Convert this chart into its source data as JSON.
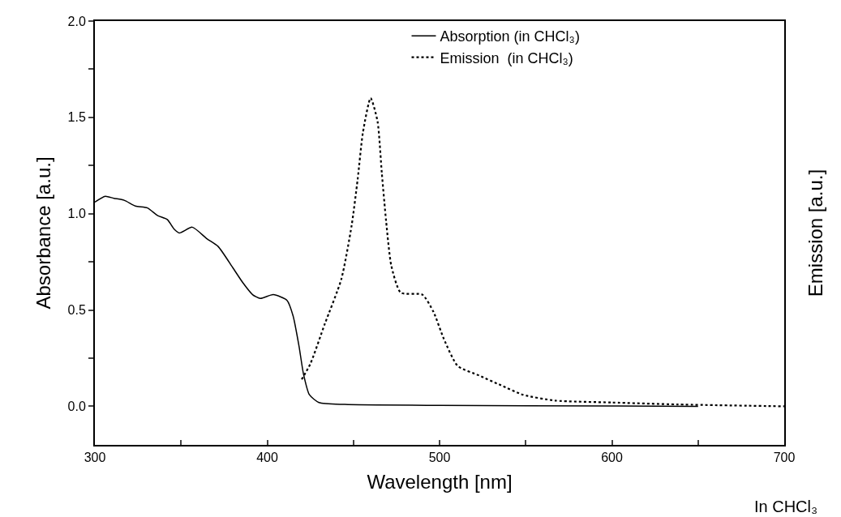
{
  "chart_data": {
    "type": "line",
    "xlabel": "Wavelength [nm]",
    "ylabel": "Absorbance [a.u.]",
    "y2label": "Emission [a.u.]",
    "xlim": [
      300,
      700
    ],
    "xticks": [
      300,
      {
        "value": 350,
        "label": null
      },
      400,
      {
        "value": 450,
        "label": null
      },
      500,
      {
        "value": 550,
        "label": null
      },
      600,
      {
        "value": 650,
        "label": null
      },
      700
    ],
    "ylim": [
      -0.2,
      2.0
    ],
    "yticks": [
      {
        "value": 0,
        "label": "0.0"
      },
      {
        "value": 0.25,
        "label": null
      },
      0.5,
      {
        "value": 0.75,
        "label": null
      },
      {
        "value": 1,
        "label": "1.0"
      },
      {
        "value": 1.25,
        "label": null
      },
      1.5,
      {
        "value": 1.75,
        "label": null
      },
      {
        "value": 2,
        "label": "2.0"
      }
    ],
    "grid": false,
    "legend": "top right",
    "marker": "none",
    "annotations": [
      "In CHCl₃"
    ],
    "series": [
      {
        "name": "Absorption (in CHCl₃)",
        "color": "#000000",
        "line_style": "solid",
        "x": [
          300,
          306,
          311,
          317,
          323.5,
          330.5,
          336.5,
          342,
          346,
          349,
          356.5,
          365,
          371.5,
          380,
          386,
          391.5,
          396,
          403.5,
          411.5,
          415,
          418.5,
          421,
          424.5,
          430,
          445,
          500,
          600,
          650
        ],
        "values": [
          1.06,
          1.09,
          1.08,
          1.07,
          1.04,
          1.03,
          0.99,
          0.97,
          0.92,
          0.9,
          0.93,
          0.87,
          0.83,
          0.72,
          0.64,
          0.58,
          0.56,
          0.58,
          0.55,
          0.47,
          0.31,
          0.17,
          0.06,
          0.02,
          0.01,
          0.005,
          0.002,
          0.0
        ]
      },
      {
        "name": "Emission  (in CHCl₃)",
        "color": "#000000",
        "line_style": "dotted",
        "x": [
          420,
          425,
          433.5,
          443,
          449,
          452.5,
          455.5,
          460,
          464,
          466.5,
          469,
          472,
          477.5,
          490,
          496.5,
          502.5,
          510.5,
          523,
          535.5,
          548.5,
          567,
          600,
          638,
          700
        ],
        "values": [
          0.14,
          0.22,
          0.43,
          0.66,
          0.94,
          1.18,
          1.42,
          1.6,
          1.48,
          1.21,
          0.96,
          0.73,
          0.59,
          0.58,
          0.49,
          0.35,
          0.21,
          0.16,
          0.11,
          0.06,
          0.03,
          0.02,
          0.01,
          0.0
        ]
      }
    ]
  }
}
